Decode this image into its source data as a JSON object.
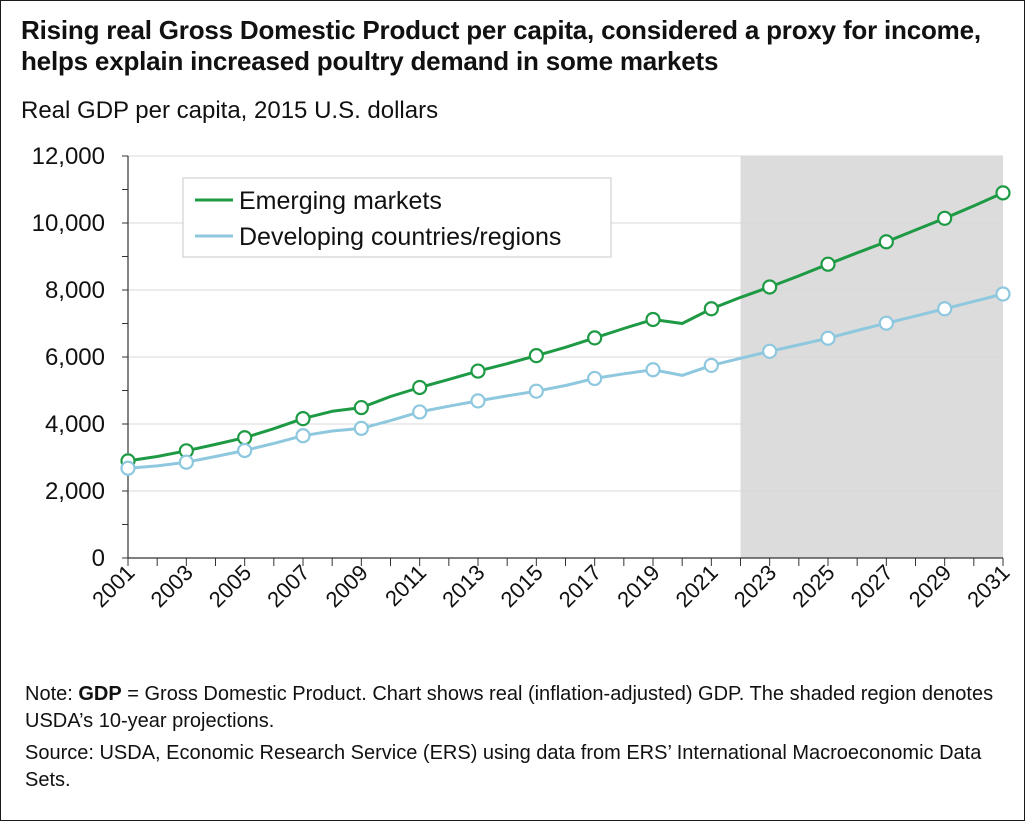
{
  "title": "Rising real Gross Domestic Product per capita, considered a proxy for income, helps explain increased poultry demand in some markets",
  "subtitle": "Real GDP per capita, 2015 U.S. dollars",
  "note": {
    "prefix": "Note: ",
    "bold_term": "GDP",
    "text": " = Gross Domestic Product. Chart shows real (inflation-adjusted) GDP. The shaded region denotes USDA’s 10-year projections."
  },
  "source": "Source: USDA, Economic Research Service (ERS) using data from ERS’ International Macroeconomic Data Sets.",
  "chart_data": {
    "type": "line",
    "ylabel": "Real GDP per capita, 2015 U.S. dollars",
    "xlim": [
      2001,
      2031
    ],
    "ylim": [
      0,
      12000
    ],
    "y_ticks": [
      0,
      2000,
      4000,
      6000,
      8000,
      10000,
      12000
    ],
    "y_tick_labels": [
      "0",
      "2,000",
      "4,000",
      "6,000",
      "8,000",
      "10,000",
      "12,000"
    ],
    "x_tick_labels": [
      "2001",
      "2003",
      "2005",
      "2007",
      "2009",
      "2011",
      "2013",
      "2015",
      "2017",
      "2019",
      "2021",
      "2023",
      "2025",
      "2027",
      "2029",
      "2031"
    ],
    "projection_range": [
      2022,
      2031
    ],
    "grid": "horizontal",
    "legend_position": "top-left",
    "x": [
      2001,
      2002,
      2003,
      2004,
      2005,
      2006,
      2007,
      2008,
      2009,
      2010,
      2011,
      2012,
      2013,
      2014,
      2015,
      2016,
      2017,
      2018,
      2019,
      2020,
      2021,
      2022,
      2023,
      2024,
      2025,
      2026,
      2027,
      2028,
      2029,
      2030,
      2031
    ],
    "series": [
      {
        "name": "Emerging markets",
        "color": "#1e9a45",
        "values": [
          2900,
          3030,
          3200,
          3390,
          3590,
          3860,
          4160,
          4380,
          4490,
          4820,
          5090,
          5330,
          5580,
          5800,
          6040,
          6290,
          6570,
          6850,
          7120,
          7000,
          7440,
          7780,
          8090,
          8420,
          8770,
          9110,
          9440,
          9790,
          10140,
          10510,
          10900
        ]
      },
      {
        "name": "Developing countries/regions",
        "color": "#8ec8df",
        "values": [
          2680,
          2750,
          2860,
          3030,
          3210,
          3420,
          3650,
          3790,
          3870,
          4100,
          4360,
          4530,
          4690,
          4840,
          4980,
          5150,
          5360,
          5500,
          5620,
          5450,
          5750,
          5960,
          6170,
          6360,
          6560,
          6790,
          7010,
          7220,
          7440,
          7660,
          7880
        ]
      }
    ],
    "marker_years": [
      2001,
      2003,
      2005,
      2007,
      2009,
      2011,
      2013,
      2015,
      2017,
      2019,
      2021,
      2023,
      2025,
      2027,
      2029,
      2031
    ]
  }
}
